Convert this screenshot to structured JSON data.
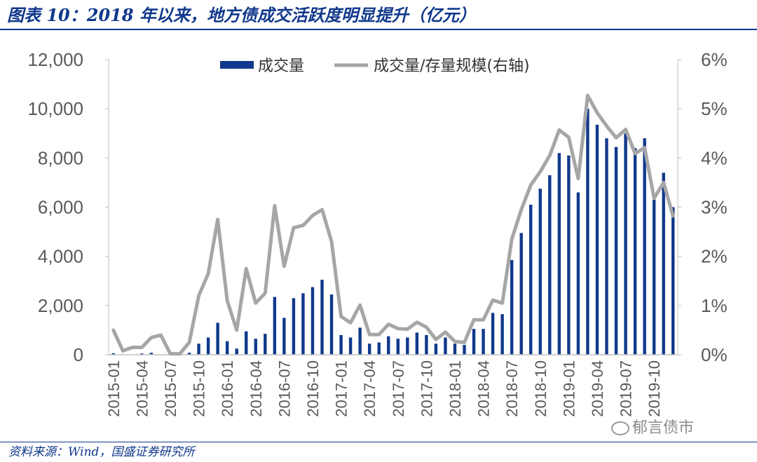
{
  "title": "图表 10：2018 年以来，地方债成交活跃度明显提升（亿元）",
  "source": "资料来源：Wind，国盛证券研究所",
  "watermark": "郁言债市",
  "colors": {
    "bar": "#10388c",
    "line": "#a6a6a6",
    "title": "#10388c",
    "axis_text": "#595959"
  },
  "chart_data": {
    "type": "bar",
    "legend_position": "top",
    "grid": false,
    "y_left": {
      "ylim": [
        0,
        12000
      ],
      "ticks": [
        "0",
        "2,000",
        "4,000",
        "6,000",
        "8,000",
        "10,000",
        "12,000"
      ]
    },
    "y_right": {
      "ylim": [
        0,
        0.06
      ],
      "ticks": [
        "0%",
        "1%",
        "2%",
        "3%",
        "4%",
        "5%",
        "6%"
      ]
    },
    "x_tick_labels": [
      "2015-01",
      "2015-04",
      "2015-07",
      "2015-10",
      "2016-01",
      "2016-04",
      "2016-07",
      "2016-10",
      "2017-01",
      "2017-04",
      "2017-07",
      "2017-10",
      "2018-01",
      "2018-04",
      "2018-07",
      "2018-10",
      "2019-01",
      "2019-04",
      "2019-07",
      "2019-10"
    ],
    "categories": [
      "2015-01",
      "2015-02",
      "2015-03",
      "2015-04",
      "2015-05",
      "2015-06",
      "2015-07",
      "2015-08",
      "2015-09",
      "2015-10",
      "2015-11",
      "2015-12",
      "2016-01",
      "2016-02",
      "2016-03",
      "2016-04",
      "2016-05",
      "2016-06",
      "2016-07",
      "2016-08",
      "2016-09",
      "2016-10",
      "2016-11",
      "2016-12",
      "2017-01",
      "2017-02",
      "2017-03",
      "2017-04",
      "2017-05",
      "2017-06",
      "2017-07",
      "2017-08",
      "2017-09",
      "2017-10",
      "2017-11",
      "2017-12",
      "2018-01",
      "2018-02",
      "2018-03",
      "2018-04",
      "2018-05",
      "2018-06",
      "2018-07",
      "2018-08",
      "2018-09",
      "2018-10",
      "2018-11",
      "2018-12",
      "2019-01",
      "2019-02",
      "2019-03",
      "2019-04",
      "2019-05",
      "2019-06",
      "2019-07",
      "2019-08",
      "2019-09",
      "2019-10",
      "2019-11",
      "2019-12"
    ],
    "series": [
      {
        "name": "成交量",
        "type": "bar",
        "axis": "left",
        "values": [
          60,
          0,
          0,
          50,
          80,
          0,
          0,
          20,
          80,
          450,
          700,
          1300,
          550,
          250,
          950,
          650,
          850,
          2350,
          1500,
          2300,
          2500,
          2750,
          3050,
          2450,
          800,
          700,
          1100,
          450,
          500,
          750,
          650,
          700,
          900,
          800,
          450,
          700,
          450,
          400,
          1050,
          1050,
          1700,
          1650,
          3850,
          4950,
          6100,
          6750,
          7300,
          8200,
          8100,
          6600,
          10000,
          9350,
          8800,
          8450,
          9000,
          8400,
          8800,
          6300,
          7400,
          6000
        ]
      },
      {
        "name": "成交量/存量规模(右轴)",
        "type": "line",
        "axis": "right",
        "values": [
          0.005,
          0.0008,
          0.0015,
          0.0015,
          0.0035,
          0.004,
          0.0002,
          0.0002,
          0.0025,
          0.012,
          0.0165,
          0.0275,
          0.011,
          0.005,
          0.0175,
          0.0105,
          0.0125,
          0.0303,
          0.018,
          0.0258,
          0.0263,
          0.0283,
          0.0295,
          0.023,
          0.0078,
          0.0065,
          0.0101,
          0.0041,
          0.0041,
          0.0062,
          0.0053,
          0.0052,
          0.0066,
          0.0056,
          0.0031,
          0.0046,
          0.0027,
          0.0025,
          0.0071,
          0.0071,
          0.0111,
          0.0105,
          0.0235,
          0.0295,
          0.0345,
          0.0372,
          0.0405,
          0.0457,
          0.0442,
          0.0358,
          0.0527,
          0.0492,
          0.0465,
          0.0441,
          0.0458,
          0.0409,
          0.0421,
          0.0318,
          0.035,
          0.0282
        ]
      }
    ]
  }
}
